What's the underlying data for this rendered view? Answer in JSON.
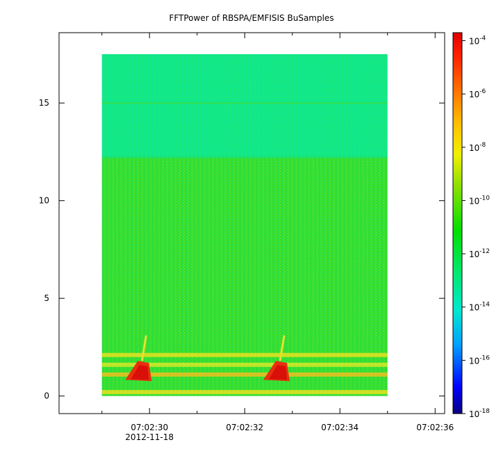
{
  "chart_data": {
    "type": "heatmap",
    "title": "FFTPower of RBSPA/EMFISIS  BuSamples",
    "xlabel": "",
    "ylabel": "",
    "x_range_seconds": [
      "07:02:28.1",
      "07:02:36.2"
    ],
    "data_extent": {
      "x_start": "07:02:29",
      "x_end": "07:02:35",
      "y_min": 0,
      "y_max": 17.5
    },
    "ylim": [
      -0.9,
      18.6
    ],
    "x_ticks": [
      {
        "label": "07:02:30",
        "sublabel": "2012-11-18",
        "t": 30
      },
      {
        "label": "07:02:32",
        "sublabel": "",
        "t": 32
      },
      {
        "label": "07:02:34",
        "sublabel": "",
        "t": 34
      },
      {
        "label": "07:02:36",
        "sublabel": "",
        "t": 36
      }
    ],
    "x_minor_ticks": [
      29,
      31,
      33,
      35
    ],
    "y_ticks": [
      {
        "label": "0",
        "v": 0
      },
      {
        "label": "5",
        "v": 5
      },
      {
        "label": "10",
        "v": 10
      },
      {
        "label": "15",
        "v": 15
      }
    ],
    "colorbar": {
      "scale": "log",
      "range": [
        1e-18,
        0.0002
      ],
      "colormap": [
        "#0a0080",
        "#0000ff",
        "#00a0ff",
        "#00e0c0",
        "#00e870",
        "#00e000",
        "#80e000",
        "#e8e800",
        "#ffc000",
        "#ff8000",
        "#ff3000",
        "#e00000"
      ],
      "ticks": [
        {
          "base": "10",
          "exp": "-4",
          "log": -4
        },
        {
          "base": "10",
          "exp": "-6",
          "log": -6
        },
        {
          "base": "10",
          "exp": "-8",
          "log": -8
        },
        {
          "base": "10",
          "exp": "-10",
          "log": -10
        },
        {
          "base": "10",
          "exp": "-12",
          "log": -12
        },
        {
          "base": "10",
          "exp": "-14",
          "log": -14
        },
        {
          "base": "10",
          "exp": "-16",
          "log": -16
        },
        {
          "base": "10",
          "exp": "-18",
          "log": -18
        }
      ]
    },
    "features": {
      "upper_band_freq_range": [
        12.2,
        17.5
      ],
      "upper_band_color": "#10e88a",
      "lower_band_color": "#30e030",
      "line_at_freq": 15.0,
      "horizontal_bands": [
        {
          "freq": 2.1,
          "color": "#e8e020"
        },
        {
          "freq": 1.6,
          "color": "#d8e828"
        },
        {
          "freq": 1.1,
          "color": "#f0c020"
        },
        {
          "freq": 0.2,
          "color": "#e8e020"
        }
      ],
      "bursts": [
        {
          "t_center": 29.9,
          "freq_low": 0.9,
          "freq_high": 1.8
        },
        {
          "t_center": 32.8,
          "freq_low": 0.9,
          "freq_high": 1.8
        }
      ]
    }
  },
  "colors": {
    "background": "#ffffff",
    "frame": "#000000"
  }
}
